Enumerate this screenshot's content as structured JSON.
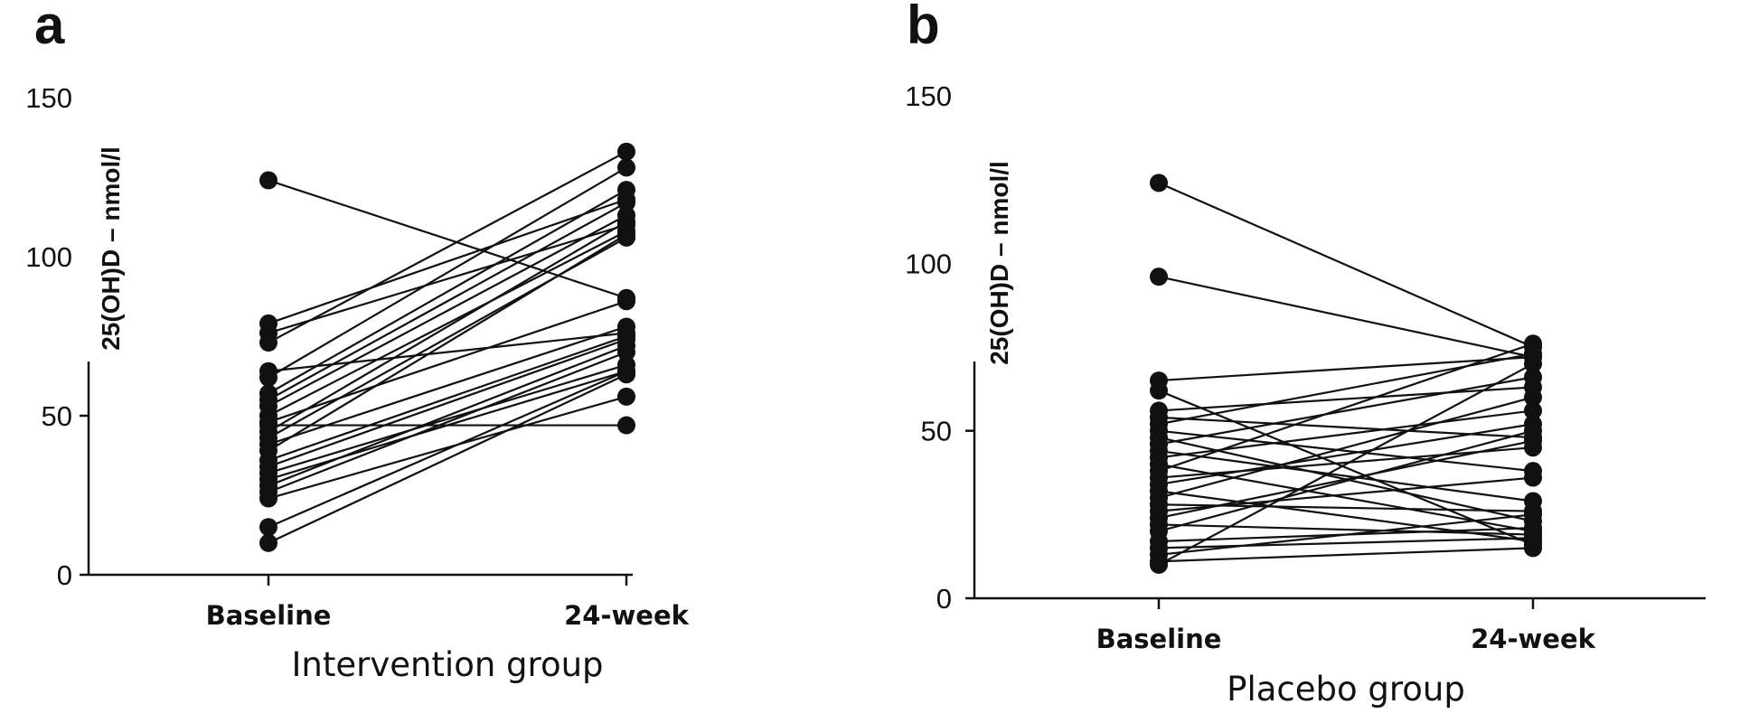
{
  "chart_data": [
    {
      "type": "paired-dot",
      "panel_label": "a",
      "title": "",
      "xlabel": "Intervention group",
      "ylabel": "25(OH)D – nmol/l",
      "categories": [
        "Baseline",
        "24-week"
      ],
      "ylim": [
        0,
        150
      ],
      "yticks": [
        0,
        50,
        100,
        150
      ],
      "grid": false,
      "legend": "none",
      "marker_color": "#111111",
      "line_color": "#111111",
      "pairs": [
        [
          124,
          87
        ],
        [
          79,
          118
        ],
        [
          76,
          110
        ],
        [
          73,
          133
        ],
        [
          64,
          76
        ],
        [
          62,
          128
        ],
        [
          57,
          121
        ],
        [
          55,
          117
        ],
        [
          53,
          113
        ],
        [
          50,
          108
        ],
        [
          48,
          86
        ],
        [
          47,
          47
        ],
        [
          45,
          111
        ],
        [
          43,
          106
        ],
        [
          41,
          78
        ],
        [
          39,
          107
        ],
        [
          36,
          75
        ],
        [
          34,
          74
        ],
        [
          32,
          66
        ],
        [
          30,
          64
        ],
        [
          28,
          72
        ],
        [
          26,
          70
        ],
        [
          24,
          56
        ],
        [
          15,
          64
        ],
        [
          10,
          63
        ]
      ]
    },
    {
      "type": "paired-dot",
      "panel_label": "b",
      "title": "",
      "xlabel": "Placebo group",
      "ylabel": "25(OH)D – nmol/l",
      "categories": [
        "Baseline",
        "24-week"
      ],
      "ylim": [
        0,
        150
      ],
      "yticks": [
        0,
        50,
        100,
        150
      ],
      "grid": false,
      "legend": "none",
      "marker_color": "#111111",
      "line_color": "#111111",
      "pairs": [
        [
          124,
          75
        ],
        [
          96,
          72
        ],
        [
          65,
          72
        ],
        [
          62,
          16
        ],
        [
          56,
          63
        ],
        [
          54,
          48
        ],
        [
          52,
          73
        ],
        [
          50,
          38
        ],
        [
          48,
          23
        ],
        [
          46,
          66
        ],
        [
          44,
          29
        ],
        [
          42,
          56
        ],
        [
          40,
          20
        ],
        [
          38,
          76
        ],
        [
          36,
          45
        ],
        [
          34,
          52
        ],
        [
          32,
          17
        ],
        [
          30,
          60
        ],
        [
          28,
          26
        ],
        [
          26,
          36
        ],
        [
          24,
          47
        ],
        [
          22,
          19
        ],
        [
          20,
          50
        ],
        [
          17,
          21
        ],
        [
          15,
          18
        ],
        [
          13,
          25
        ],
        [
          11,
          15
        ],
        [
          10,
          70
        ]
      ]
    }
  ]
}
